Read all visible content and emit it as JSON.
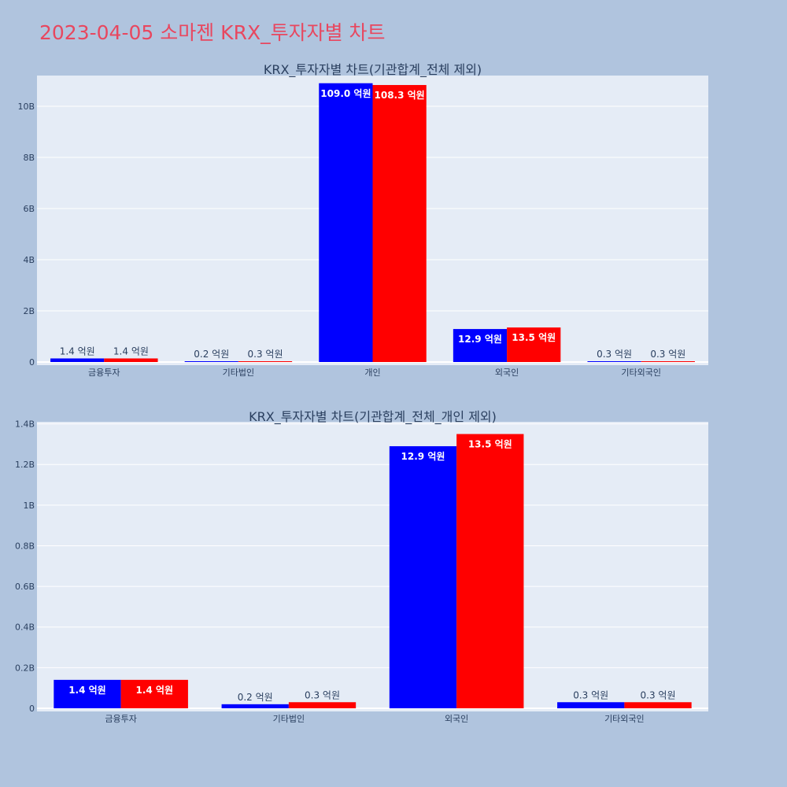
{
  "page": {
    "title": "2023-04-05 소마젠 KRX_투자자별 차트"
  },
  "colors": {
    "series_a": "#0000ff",
    "series_b": "#ff0000",
    "background": "#b0c4de",
    "plot_bg": "#e5ecf6",
    "grid": "#ffffff",
    "title": "#e8475f"
  },
  "chart_data": [
    {
      "type": "bar",
      "title": "KRX_투자자별 차트(기관합계_전체 제외)",
      "categories": [
        "금융투자",
        "기타법인",
        "개인",
        "외국인",
        "기타외국인"
      ],
      "ylim": [
        0,
        11200000000
      ],
      "yticks": [
        0,
        2000000000,
        4000000000,
        6000000000,
        8000000000,
        10000000000
      ],
      "ytick_labels": [
        "0",
        "2B",
        "4B",
        "6B",
        "8B",
        "10B"
      ],
      "grid": true,
      "series": [
        {
          "values": [
            140000000,
            20000000,
            10900000000,
            1290000000,
            30000000
          ],
          "labels": [
            "1.4 억원",
            "0.2 억원",
            "109.0 억원",
            "12.9 억원",
            "0.3 억원"
          ]
        },
        {
          "values": [
            140000000,
            30000000,
            10830000000,
            1350000000,
            30000000
          ],
          "labels": [
            "1.4 억원",
            "0.3 억원",
            "108.3 억원",
            "13.5 억원",
            "0.3 억원"
          ]
        }
      ]
    },
    {
      "type": "bar",
      "title": "KRX_투자자별 차트(기관합계_전체_개인 제외)",
      "categories": [
        "금융투자",
        "기타법인",
        "외국인",
        "기타외국인"
      ],
      "ylim": [
        0,
        1410000000
      ],
      "yticks": [
        0,
        200000000,
        400000000,
        600000000,
        800000000,
        1000000000,
        1200000000,
        1400000000
      ],
      "ytick_labels": [
        "0",
        "0.2B",
        "0.4B",
        "0.6B",
        "0.8B",
        "1B",
        "1.2B",
        "1.4B"
      ],
      "grid": true,
      "series": [
        {
          "values": [
            140000000,
            20000000,
            1290000000,
            30000000
          ],
          "labels": [
            "1.4 억원",
            "0.2 억원",
            "12.9 억원",
            "0.3 억원"
          ]
        },
        {
          "values": [
            140000000,
            30000000,
            1350000000,
            30000000
          ],
          "labels": [
            "1.4 억원",
            "0.3 억원",
            "13.5 억원",
            "0.3 억원"
          ]
        }
      ]
    }
  ]
}
